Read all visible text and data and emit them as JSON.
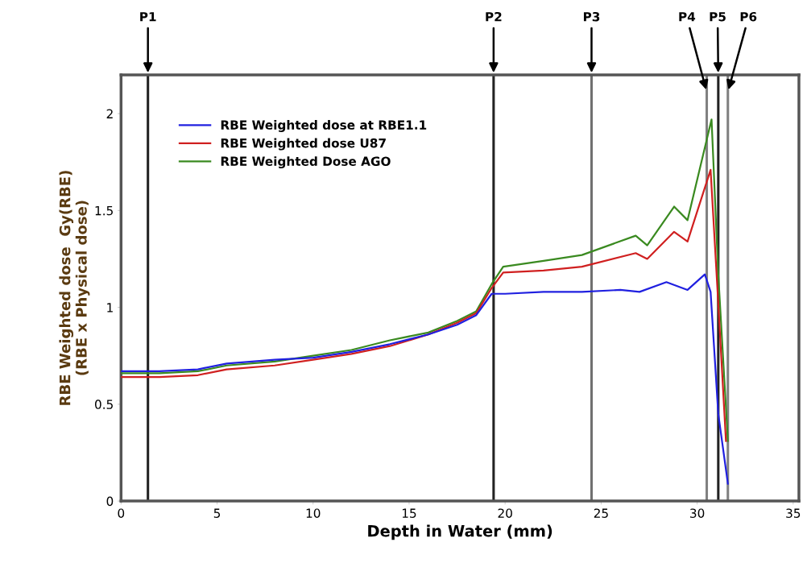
{
  "chart_data": {
    "type": "line",
    "xlabel": "Depth in Water (mm)",
    "ylabel": "RBE Weighted dose  Gy(RBE)\n(RBE x Physical dose)",
    "xlim": [
      0,
      35.3
    ],
    "ylim": [
      0,
      2.2
    ],
    "xticks": [
      0,
      5,
      10,
      15,
      20,
      25,
      30,
      35
    ],
    "yticks": [
      0,
      0.5,
      1,
      1.5,
      2
    ],
    "grid": false,
    "legend": "top left",
    "series": [
      {
        "name": "RBE Weighted dose at RBE1.1",
        "color": "#2020e0",
        "x": [
          0,
          2,
          4,
          5.5,
          8,
          10,
          12,
          14,
          16,
          17.5,
          18.5,
          19.3,
          20,
          22,
          24,
          26,
          27,
          28.4,
          29.5,
          30.4,
          30.7,
          31.1,
          31.6
        ],
        "values": [
          0.67,
          0.67,
          0.68,
          0.71,
          0.73,
          0.74,
          0.77,
          0.81,
          0.86,
          0.91,
          0.96,
          1.07,
          1.07,
          1.08,
          1.08,
          1.09,
          1.08,
          1.13,
          1.09,
          1.17,
          1.08,
          0.45,
          0.09
        ]
      },
      {
        "name": "RBE Weighted dose U87",
        "color": "#d02020",
        "x": [
          0,
          2,
          4,
          5.5,
          8,
          10,
          12,
          14,
          16,
          17.5,
          18.5,
          19.3,
          19.9,
          22,
          24,
          26.8,
          27.4,
          28.8,
          29.5,
          30.7,
          31.1,
          31.5
        ],
        "values": [
          0.64,
          0.64,
          0.65,
          0.68,
          0.7,
          0.73,
          0.76,
          0.8,
          0.86,
          0.92,
          0.97,
          1.1,
          1.18,
          1.19,
          1.21,
          1.28,
          1.25,
          1.39,
          1.34,
          1.71,
          1.02,
          0.31
        ]
      },
      {
        "name": "RBE Weighted Dose AGO",
        "color": "#3a8a20",
        "x": [
          0,
          2,
          4,
          5.5,
          8,
          10,
          12,
          14,
          16,
          17.5,
          18.5,
          19.3,
          19.9,
          22,
          24,
          26.8,
          27.4,
          28.8,
          29.5,
          30.75,
          31.1,
          31.6
        ],
        "values": [
          0.66,
          0.66,
          0.67,
          0.7,
          0.72,
          0.75,
          0.78,
          0.83,
          0.87,
          0.93,
          0.98,
          1.12,
          1.21,
          1.24,
          1.27,
          1.37,
          1.32,
          1.52,
          1.45,
          1.97,
          1.17,
          0.31
        ]
      }
    ],
    "ref_lines": [
      {
        "axis": "x",
        "value": 1.4,
        "label": "P1",
        "color": "#222222"
      },
      {
        "axis": "x",
        "value": 19.4,
        "label": "P2",
        "color": "#222222"
      },
      {
        "axis": "x",
        "value": 24.5,
        "label": "P3",
        "color": "#707070"
      },
      {
        "axis": "x",
        "value": 30.5,
        "label": "P4",
        "color": "#808080"
      },
      {
        "axis": "x",
        "value": 31.1,
        "label": "P5",
        "color": "#222222"
      },
      {
        "axis": "x",
        "value": 31.6,
        "label": "P6",
        "color": "#808080"
      }
    ]
  }
}
